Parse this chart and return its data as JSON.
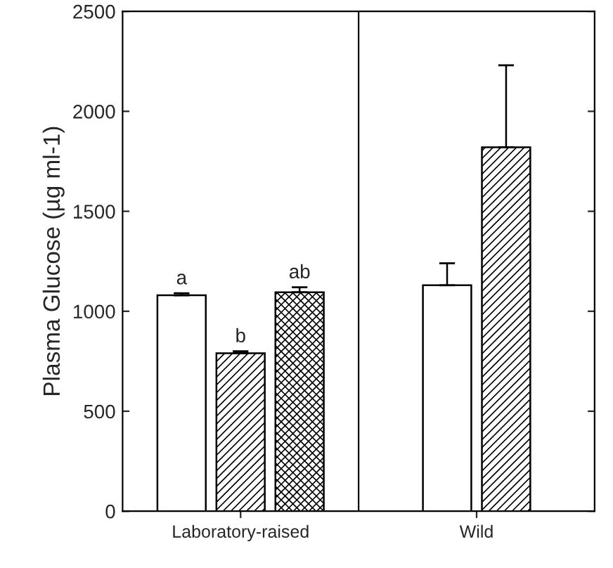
{
  "chart_data": {
    "type": "bar",
    "ylabel": "Plasma Glucose (µg ml-1)",
    "categories": [
      "Laboratory-raised",
      "Wild"
    ],
    "series": [
      {
        "color": "#ffffff",
        "values": [
          1080,
          1130
        ],
        "errors": [
          10,
          110
        ],
        "value_labels": [
          "a",
          null
        ]
      },
      {
        "color": "#000000",
        "values": [
          790,
          1820
        ],
        "errors": [
          10,
          410
        ],
        "value_labels": [
          "b",
          null
        ]
      },
      {
        "color": "#000000",
        "values": [
          1095,
          null
        ],
        "errors": [
          25,
          null
        ],
        "value_labels": [
          "ab",
          null
        ]
      }
    ],
    "ylim": [
      0,
      2500
    ],
    "yticks": [
      0,
      500,
      1000,
      1500,
      2000,
      2500
    ],
    "grid": false,
    "legend": false
  }
}
